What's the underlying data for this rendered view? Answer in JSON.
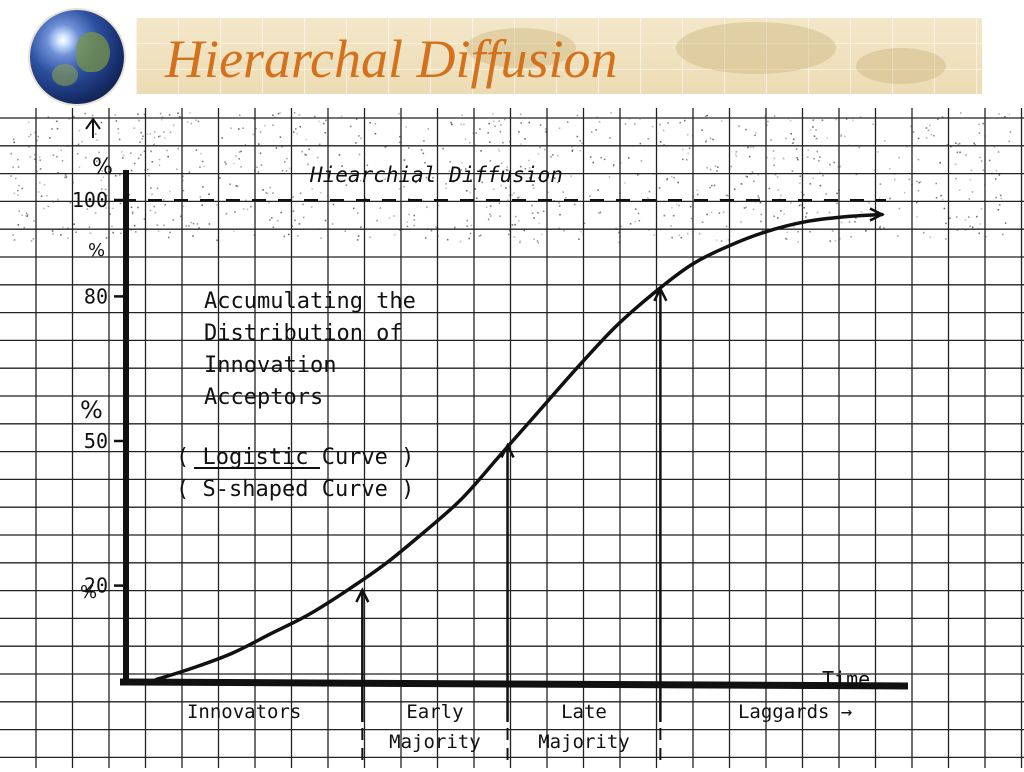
{
  "slide": {
    "title": "Hierarchal Diffusion"
  },
  "chart_data": {
    "type": "line",
    "title": "Hiearchial Diffusion",
    "xlabel": "Time",
    "ylabel": "%",
    "ylim": [
      0,
      100
    ],
    "y_ticks": [
      {
        "value": 100,
        "label": "100"
      },
      {
        "value": 80,
        "label": "80"
      },
      {
        "value": 50,
        "label": "50"
      },
      {
        "value": 20,
        "label": "20"
      }
    ],
    "series": [
      {
        "x": [
          0,
          5,
          10,
          15,
          20,
          25,
          30,
          35,
          40,
          45,
          50,
          55,
          60,
          65,
          70,
          75,
          80,
          85,
          90,
          95
        ],
        "y": [
          0.5,
          3,
          6,
          10,
          14,
          19,
          24.5,
          31,
          38,
          47,
          56,
          65,
          73.5,
          80.5,
          86.5,
          90.5,
          93.5,
          95.5,
          96.5,
          97
        ]
      }
    ],
    "reference_line": {
      "value": 100,
      "style": "dashed"
    },
    "markers": [
      {
        "x": 27,
        "y": 19.5
      },
      {
        "x": 46,
        "y": 49.5
      },
      {
        "x": 66,
        "y": 82
      }
    ],
    "annotations": [
      "Accumulating the",
      "Distribution of",
      "Innovation",
      "Acceptors",
      "( Logistic Curve )",
      "( S-shaped Curve )"
    ],
    "categories": [
      {
        "label": "Innovators"
      },
      {
        "label": "Early",
        "label2": "Majority"
      },
      {
        "label": "Late",
        "label2": "Majority"
      },
      {
        "label": "Laggards →"
      }
    ],
    "colors": {
      "ink": "#111111",
      "paper": "#ffffff",
      "title": "#d4711c"
    }
  }
}
